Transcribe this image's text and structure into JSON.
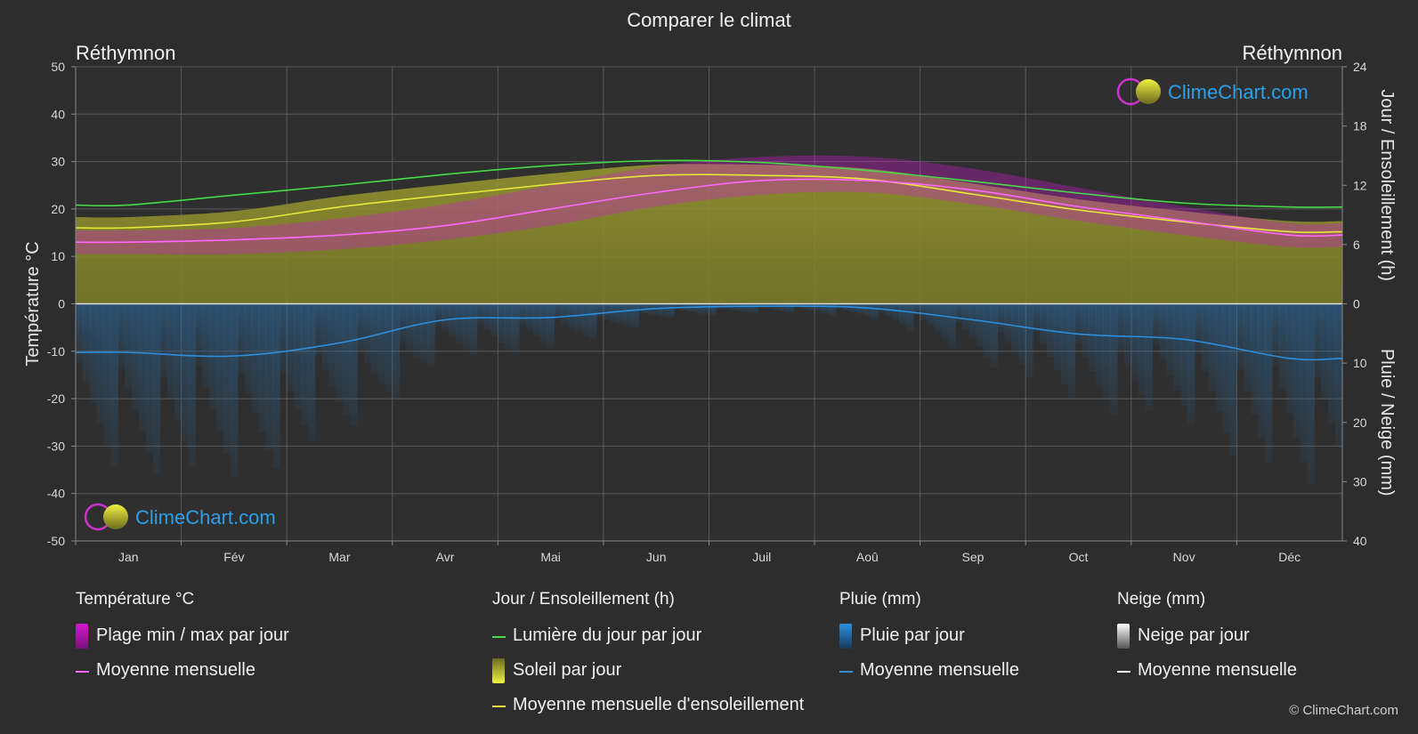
{
  "title": "Comparer le climat",
  "location_left": "Réthymnon",
  "location_right": "Réthymnon",
  "copyright": "© ClimeChart.com",
  "watermark": "ClimeChart.com",
  "colors": {
    "daylight": "#44dd44",
    "sunshine_fill": "#8f8f2c",
    "sunshine_line": "#e8e83a",
    "temp_range": "#d21ad2",
    "temp_mean": "#ff66ff",
    "rain": "#2a7fc4",
    "rain_line": "#2a8fe0",
    "snow_line": "#ffffff"
  },
  "legend": {
    "temperature": {
      "header": "Température °C",
      "range": "Plage min / max par jour",
      "mean": "Moyenne mensuelle"
    },
    "sun": {
      "header": "Jour / Ensoleillement (h)",
      "daylight": "Lumière du jour par jour",
      "sunshine": "Soleil par jour",
      "sun_mean": "Moyenne mensuelle d'ensoleillement"
    },
    "rain": {
      "header": "Pluie (mm)",
      "per_day": "Pluie par jour",
      "mean": "Moyenne mensuelle"
    },
    "snow": {
      "header": "Neige (mm)",
      "per_day": "Neige par jour",
      "mean": "Moyenne mensuelle"
    }
  },
  "chart_data": {
    "type": "area",
    "categories": [
      "Jan",
      "Fév",
      "Mar",
      "Avr",
      "Mai",
      "Jun",
      "Juil",
      "Aoû",
      "Sep",
      "Oct",
      "Nov",
      "Déc"
    ],
    "y_left": {
      "label": "Température °C",
      "range": [
        -50,
        50
      ],
      "ticks": [
        50,
        40,
        30,
        20,
        10,
        0,
        -10,
        -20,
        -30,
        -40,
        -50
      ]
    },
    "y_right_top": {
      "label": "Jour / Ensoleillement (h)",
      "range": [
        0,
        24
      ],
      "ticks": [
        24,
        18,
        12,
        6,
        0
      ]
    },
    "y_right_bottom": {
      "label": "Pluie / Neige (mm)",
      "range": [
        0,
        40
      ],
      "ticks": [
        0,
        10,
        20,
        30,
        40
      ]
    },
    "grid": true,
    "series": [
      {
        "name": "Lumière du jour par jour",
        "axis": "hours",
        "values": [
          10.0,
          11.0,
          12.0,
          13.1,
          14.0,
          14.5,
          14.3,
          13.5,
          12.4,
          11.2,
          10.2,
          9.8
        ]
      },
      {
        "name": "Moyenne mensuelle d'ensoleillement",
        "axis": "hours",
        "values": [
          7.7,
          8.3,
          9.8,
          11.0,
          12.1,
          13.0,
          13.0,
          12.6,
          11.1,
          9.5,
          8.3,
          7.3
        ]
      },
      {
        "name": "Température moyenne mensuelle",
        "axis": "temperature",
        "values": [
          13,
          13.5,
          14.5,
          16.5,
          20,
          23.5,
          26,
          26,
          24,
          20.5,
          17.5,
          14.5
        ]
      },
      {
        "name": "Température max quotidienne",
        "axis": "temperature",
        "values": [
          15.5,
          16,
          18,
          21,
          25,
          29,
          31,
          31,
          28.5,
          24.5,
          20.5,
          17
        ]
      },
      {
        "name": "Température min quotidienne",
        "axis": "temperature",
        "values": [
          10.5,
          10.5,
          11.5,
          13.5,
          16.5,
          20.5,
          23,
          23.5,
          21,
          17.5,
          14.5,
          12
        ]
      },
      {
        "name": "Pluie moyenne mensuelle",
        "axis": "mm",
        "values": [
          8.2,
          8.8,
          6.6,
          2.7,
          2.3,
          0.8,
          0.4,
          0.7,
          2.7,
          5.1,
          6.0,
          9.2
        ]
      },
      {
        "name": "Neige moyenne mensuelle",
        "axis": "mm",
        "values": [
          0,
          0,
          0,
          0,
          0,
          0,
          0,
          0,
          0,
          0,
          0,
          0
        ]
      }
    ]
  }
}
